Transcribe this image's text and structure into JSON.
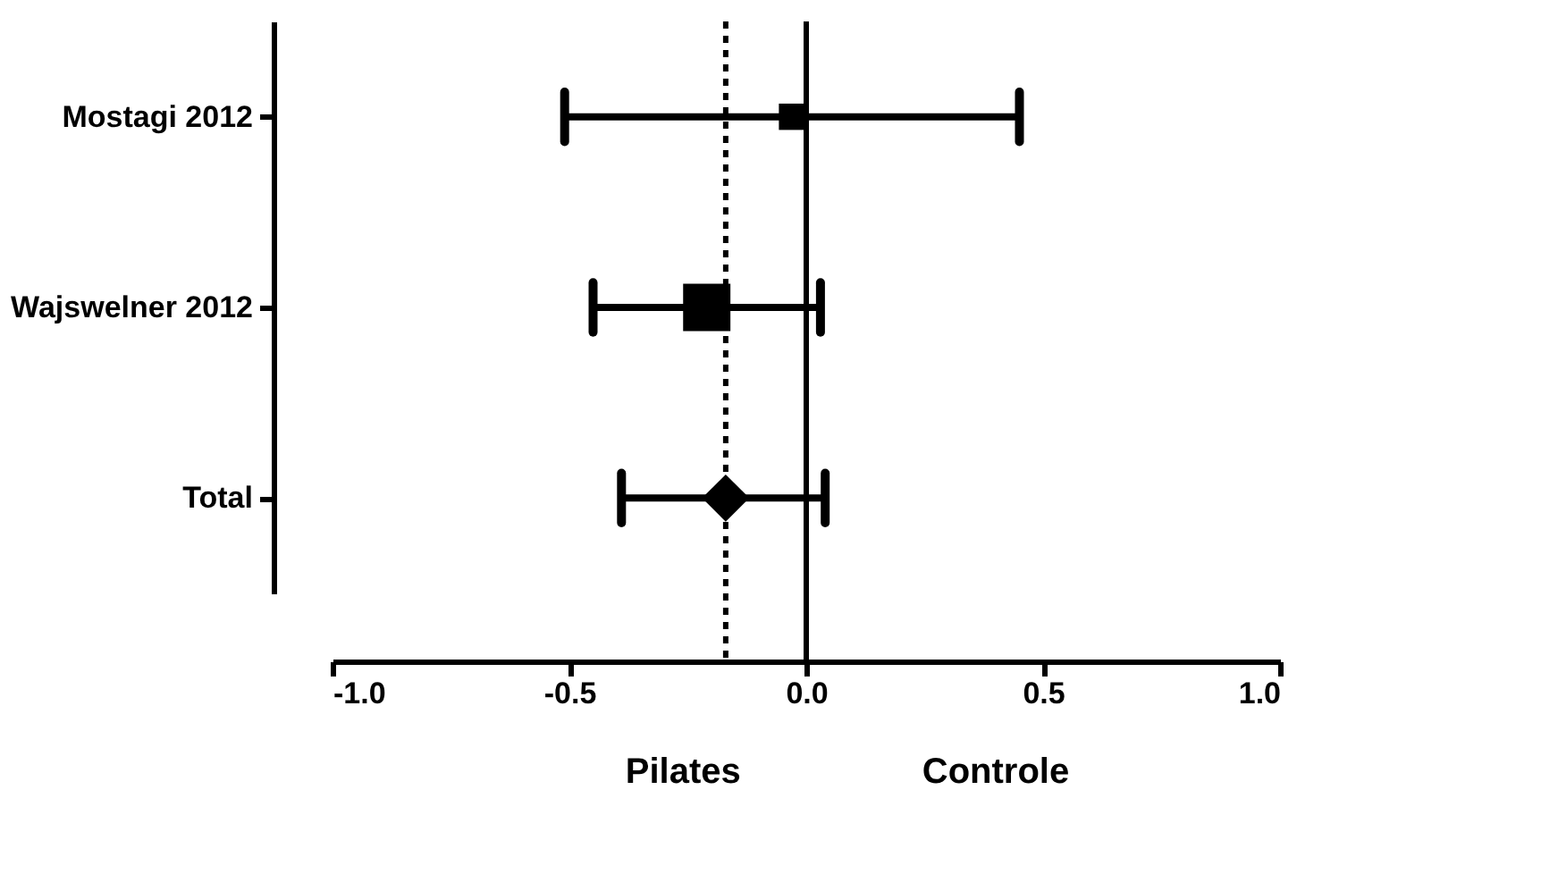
{
  "chart_data": {
    "type": "scatter",
    "orientation": "horizontal",
    "categories": [
      "Mostagi 2012",
      "Wajswelner 2012",
      "Total"
    ],
    "xlim": [
      -1.0,
      1.0
    ],
    "xticks": [
      {
        "value": -1.0,
        "label": "-1.0"
      },
      {
        "value": -0.5,
        "label": "-0.5"
      },
      {
        "value": 0,
        "label": "0.0"
      },
      {
        "value": 0.5,
        "label": "0.5"
      },
      {
        "value": 1.0,
        "label": "1.0"
      }
    ],
    "series": [
      {
        "color": "#000000",
        "marker": "square",
        "values": [
          -0.03,
          -0.21,
          null
        ],
        "errors": [
          [
            -0.51,
            0.45
          ],
          [
            -0.45,
            0.03
          ],
          null
        ],
        "sizes": [
          0.31,
          1,
          null
        ]
      },
      {
        "color": "#000000",
        "marker": "diamond",
        "values": [
          null,
          null,
          -0.17
        ],
        "errors": [
          null,
          null,
          [
            -0.39,
            0.04
          ]
        ]
      }
    ],
    "ref_lines": [
      {
        "axis": "x",
        "value": 0,
        "line_style": "solid",
        "color": "#000000"
      },
      {
        "axis": "x",
        "value": -0.17,
        "line_style": "dotted",
        "color": "#000000"
      }
    ],
    "annotations": [
      "Pilates",
      "Controle"
    ],
    "grid": false,
    "legend": false
  }
}
